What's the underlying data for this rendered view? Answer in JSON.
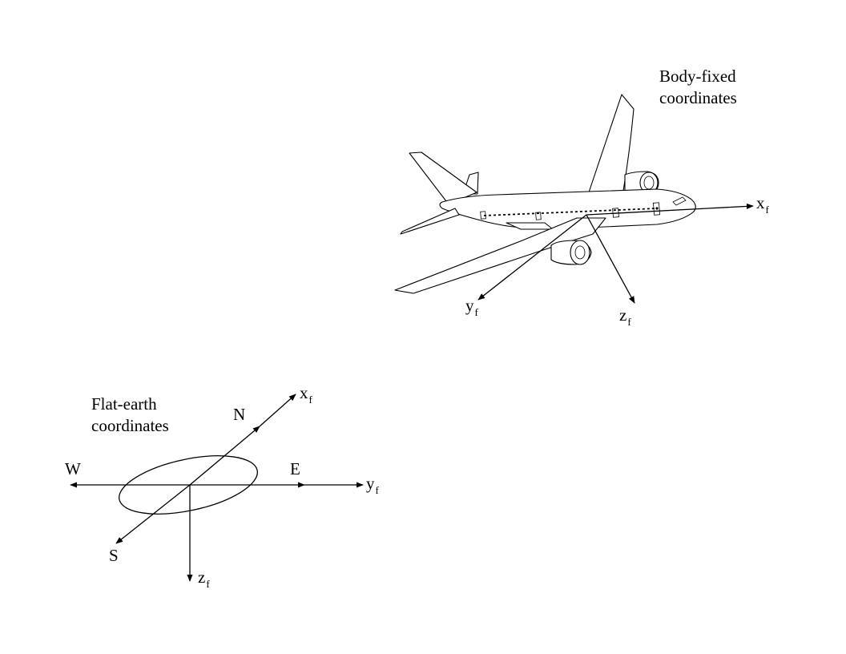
{
  "body_frame": {
    "title_line1": "Body-fixed",
    "title_line2": "coordinates",
    "x_axis": "x",
    "y_axis": "y",
    "z_axis": "z",
    "subscript": "f"
  },
  "earth_frame": {
    "title_line1": "Flat-earth",
    "title_line2": "coordinates",
    "north": "N",
    "south": "S",
    "east": "E",
    "west": "W",
    "x_axis": "x",
    "y_axis": "y",
    "z_axis": "z",
    "subscript": "f"
  }
}
